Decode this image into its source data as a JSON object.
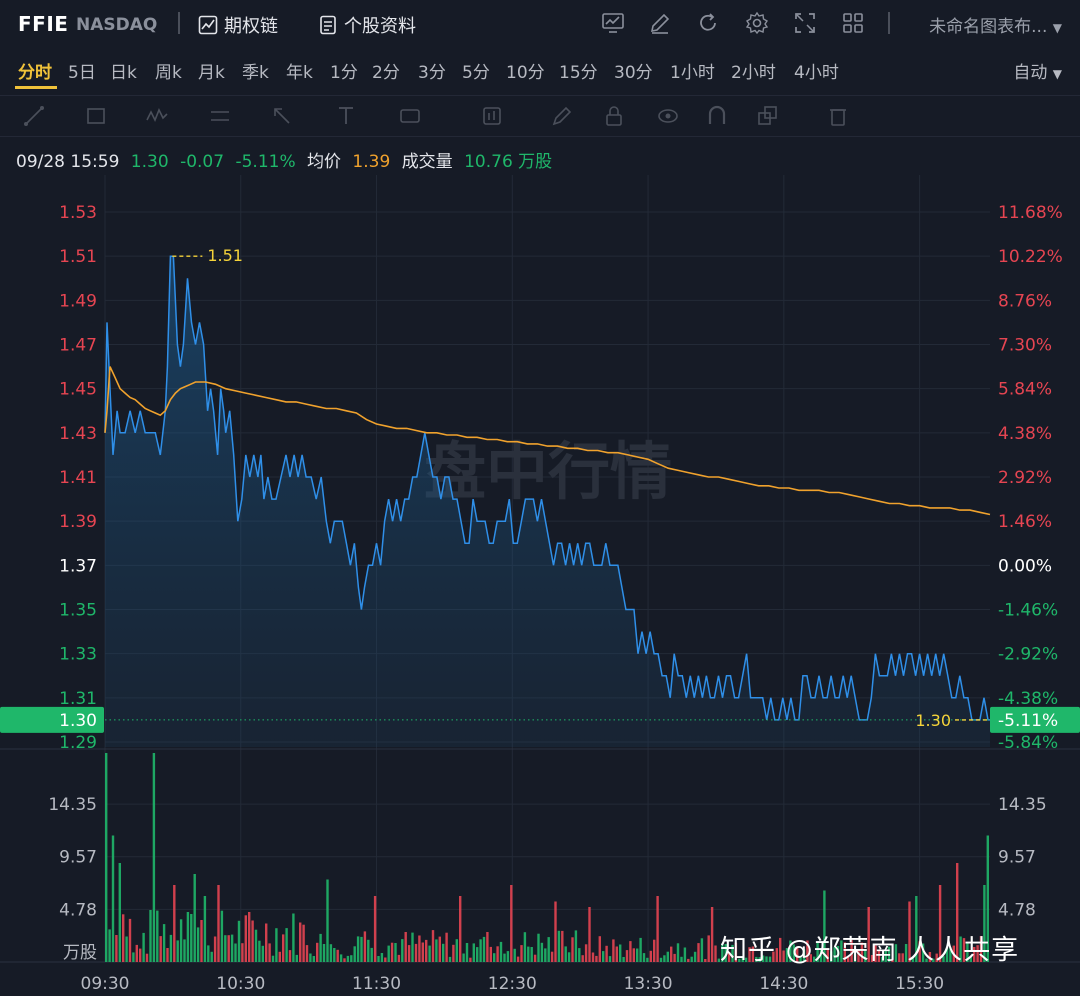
{
  "header": {
    "symbol": "FFIE",
    "exchange": "NASDAQ",
    "options_link": "期权链",
    "profile_link": "个股资料",
    "chart_title": "未命名图表布...",
    "icons": [
      "chart-compare-icon",
      "pencil-icon",
      "refresh-icon",
      "gear-icon",
      "fullscreen-icon",
      "grid-layout-icon"
    ]
  },
  "periods": [
    "分时",
    "5日",
    "日k",
    "周k",
    "月k",
    "季k",
    "年k",
    "1分",
    "2分",
    "3分",
    "5分",
    "10分",
    "15分",
    "30分",
    "1小时",
    "2小时",
    "4小时"
  ],
  "active_period": "分时",
  "scale_mode": "自动",
  "drawing_tools": [
    "trend-line-icon",
    "rectangle-icon",
    "wave-icon",
    "ruler-icon",
    "arrow-icon",
    "text-icon",
    "price-label-icon",
    "bar-pattern-icon",
    "brush-icon",
    "lock-icon",
    "eye-icon",
    "magnet-icon",
    "layers-icon",
    "trash-icon"
  ],
  "info": {
    "datetime": "09/28 15:59",
    "price": "1.30",
    "change": "-0.07",
    "change_pct": "-5.11%",
    "avg_label": "均价",
    "avg_value": "1.39",
    "volume_label": "成交量",
    "volume_value": "10.76 万股"
  },
  "colors": {
    "price_line": "#2f8fe8",
    "avg_line": "#f0a22d",
    "up": "#e64552",
    "down": "#1fb76a",
    "neutral": "#ffffff",
    "highlight": "#f5d33a"
  },
  "watermark_center": "盘中行情",
  "watermark_credit": "知乎 @郑荣南 人人共享",
  "chart_data": {
    "type": "line",
    "prev_close": 1.37,
    "ylim": [
      1.28,
      1.54
    ],
    "price_ticks": [
      "1.53",
      "1.51",
      "1.49",
      "1.47",
      "1.45",
      "1.43",
      "1.41",
      "1.39",
      "1.37",
      "1.35",
      "1.33",
      "1.31",
      "1.29"
    ],
    "pct_ticks": [
      "11.68%",
      "10.22%",
      "8.76%",
      "7.30%",
      "5.84%",
      "4.38%",
      "2.92%",
      "1.46%",
      "0.00%",
      "-1.46%",
      "-2.92%",
      "-4.38%",
      "-5.84%"
    ],
    "x_ticks": [
      "09:30",
      "10:30",
      "11:30",
      "12:30",
      "13:30",
      "14:30",
      "15:30"
    ],
    "high_marker": "1.51",
    "last_marker": "1.30",
    "last_price_tag": "1.30",
    "last_pct_tag": "-5.11%",
    "volume_ticks": [
      "14.35",
      "9.57",
      "4.78"
    ],
    "volume_unit": "万股",
    "volume_max": 19.0,
    "price": [
      [
        0,
        1.43
      ],
      [
        2,
        1.48
      ],
      [
        5,
        1.45
      ],
      [
        8,
        1.42
      ],
      [
        12,
        1.44
      ],
      [
        15,
        1.43
      ],
      [
        20,
        1.43
      ],
      [
        25,
        1.44
      ],
      [
        30,
        1.43
      ],
      [
        35,
        1.44
      ],
      [
        40,
        1.43
      ],
      [
        45,
        1.43
      ],
      [
        50,
        1.43
      ],
      [
        55,
        1.42
      ],
      [
        60,
        1.44
      ],
      [
        62,
        1.46
      ],
      [
        65,
        1.51
      ],
      [
        68,
        1.51
      ],
      [
        72,
        1.47
      ],
      [
        75,
        1.46
      ],
      [
        78,
        1.47
      ],
      [
        82,
        1.5
      ],
      [
        86,
        1.48
      ],
      [
        90,
        1.47
      ],
      [
        94,
        1.48
      ],
      [
        98,
        1.47
      ],
      [
        102,
        1.44
      ],
      [
        105,
        1.45
      ],
      [
        108,
        1.44
      ],
      [
        112,
        1.42
      ],
      [
        115,
        1.45
      ],
      [
        118,
        1.44
      ],
      [
        120,
        1.43
      ],
      [
        124,
        1.44
      ],
      [
        128,
        1.42
      ],
      [
        132,
        1.39
      ],
      [
        136,
        1.4
      ],
      [
        140,
        1.42
      ],
      [
        144,
        1.41
      ],
      [
        148,
        1.42
      ],
      [
        152,
        1.41
      ],
      [
        155,
        1.42
      ],
      [
        158,
        1.4
      ],
      [
        162,
        1.41
      ],
      [
        166,
        1.4
      ],
      [
        170,
        1.4
      ],
      [
        175,
        1.41
      ],
      [
        180,
        1.42
      ],
      [
        184,
        1.41
      ],
      [
        188,
        1.42
      ],
      [
        192,
        1.41
      ],
      [
        196,
        1.42
      ],
      [
        200,
        1.41
      ],
      [
        205,
        1.41
      ],
      [
        210,
        1.4
      ],
      [
        215,
        1.41
      ],
      [
        220,
        1.39
      ],
      [
        224,
        1.38
      ],
      [
        228,
        1.39
      ],
      [
        232,
        1.39
      ],
      [
        236,
        1.39
      ],
      [
        240,
        1.38
      ],
      [
        244,
        1.37
      ],
      [
        248,
        1.38
      ],
      [
        252,
        1.36
      ],
      [
        255,
        1.35
      ],
      [
        258,
        1.36
      ],
      [
        262,
        1.37
      ],
      [
        266,
        1.37
      ],
      [
        270,
        1.38
      ],
      [
        274,
        1.37
      ],
      [
        278,
        1.39
      ],
      [
        282,
        1.4
      ],
      [
        286,
        1.39
      ],
      [
        290,
        1.4
      ],
      [
        294,
        1.39
      ],
      [
        298,
        1.4
      ],
      [
        302,
        1.4
      ],
      [
        306,
        1.41
      ],
      [
        310,
        1.41
      ],
      [
        314,
        1.42
      ],
      [
        318,
        1.43
      ],
      [
        322,
        1.42
      ],
      [
        326,
        1.41
      ],
      [
        330,
        1.41
      ],
      [
        334,
        1.4
      ],
      [
        338,
        1.41
      ],
      [
        342,
        1.41
      ],
      [
        346,
        1.4
      ],
      [
        350,
        1.4
      ],
      [
        354,
        1.39
      ],
      [
        358,
        1.38
      ],
      [
        362,
        1.38
      ],
      [
        366,
        1.4
      ],
      [
        370,
        1.39
      ],
      [
        374,
        1.39
      ],
      [
        378,
        1.39
      ],
      [
        382,
        1.38
      ],
      [
        386,
        1.38
      ],
      [
        390,
        1.39
      ],
      [
        394,
        1.39
      ],
      [
        398,
        1.39
      ],
      [
        402,
        1.4
      ],
      [
        406,
        1.38
      ],
      [
        410,
        1.38
      ],
      [
        414,
        1.39
      ],
      [
        418,
        1.4
      ],
      [
        422,
        1.4
      ],
      [
        426,
        1.4
      ],
      [
        430,
        1.39
      ],
      [
        434,
        1.4
      ],
      [
        438,
        1.39
      ],
      [
        442,
        1.38
      ],
      [
        446,
        1.37
      ],
      [
        450,
        1.38
      ],
      [
        454,
        1.38
      ],
      [
        458,
        1.37
      ],
      [
        462,
        1.38
      ],
      [
        466,
        1.37
      ],
      [
        470,
        1.38
      ],
      [
        474,
        1.37
      ],
      [
        478,
        1.38
      ],
      [
        482,
        1.38
      ],
      [
        486,
        1.37
      ],
      [
        490,
        1.37
      ],
      [
        494,
        1.37
      ],
      [
        498,
        1.38
      ],
      [
        502,
        1.37
      ],
      [
        506,
        1.37
      ],
      [
        510,
        1.37
      ],
      [
        514,
        1.36
      ],
      [
        518,
        1.35
      ],
      [
        522,
        1.35
      ],
      [
        526,
        1.35
      ],
      [
        530,
        1.33
      ],
      [
        534,
        1.34
      ],
      [
        538,
        1.33
      ],
      [
        542,
        1.34
      ],
      [
        546,
        1.33
      ],
      [
        550,
        1.33
      ],
      [
        554,
        1.32
      ],
      [
        558,
        1.32
      ],
      [
        562,
        1.31
      ],
      [
        566,
        1.33
      ],
      [
        570,
        1.32
      ],
      [
        574,
        1.32
      ],
      [
        578,
        1.31
      ],
      [
        582,
        1.32
      ],
      [
        586,
        1.31
      ],
      [
        590,
        1.32
      ],
      [
        594,
        1.31
      ],
      [
        598,
        1.32
      ],
      [
        602,
        1.31
      ],
      [
        606,
        1.31
      ],
      [
        610,
        1.32
      ],
      [
        614,
        1.31
      ],
      [
        618,
        1.32
      ],
      [
        622,
        1.32
      ],
      [
        626,
        1.31
      ],
      [
        630,
        1.31
      ],
      [
        634,
        1.32
      ],
      [
        638,
        1.33
      ],
      [
        642,
        1.31
      ],
      [
        646,
        1.31
      ],
      [
        650,
        1.31
      ],
      [
        654,
        1.31
      ],
      [
        658,
        1.3
      ],
      [
        662,
        1.31
      ],
      [
        666,
        1.3
      ],
      [
        670,
        1.3
      ],
      [
        674,
        1.31
      ],
      [
        678,
        1.3
      ],
      [
        682,
        1.31
      ],
      [
        686,
        1.3
      ],
      [
        690,
        1.3
      ],
      [
        694,
        1.32
      ],
      [
        698,
        1.32
      ],
      [
        702,
        1.31
      ],
      [
        706,
        1.31
      ],
      [
        710,
        1.32
      ],
      [
        714,
        1.31
      ],
      [
        718,
        1.31
      ],
      [
        722,
        1.32
      ],
      [
        726,
        1.31
      ],
      [
        730,
        1.31
      ],
      [
        734,
        1.32
      ],
      [
        738,
        1.31
      ],
      [
        742,
        1.32
      ],
      [
        746,
        1.31
      ],
      [
        750,
        1.3
      ],
      [
        754,
        1.3
      ],
      [
        758,
        1.3
      ],
      [
        762,
        1.31
      ],
      [
        766,
        1.33
      ],
      [
        770,
        1.32
      ],
      [
        774,
        1.32
      ],
      [
        778,
        1.32
      ],
      [
        782,
        1.33
      ],
      [
        786,
        1.32
      ],
      [
        790,
        1.33
      ],
      [
        794,
        1.32
      ],
      [
        798,
        1.33
      ],
      [
        802,
        1.33
      ],
      [
        806,
        1.32
      ],
      [
        810,
        1.33
      ],
      [
        814,
        1.32
      ],
      [
        818,
        1.33
      ],
      [
        822,
        1.32
      ],
      [
        826,
        1.33
      ],
      [
        830,
        1.32
      ],
      [
        834,
        1.33
      ],
      [
        838,
        1.32
      ],
      [
        842,
        1.31
      ],
      [
        846,
        1.31
      ],
      [
        850,
        1.32
      ],
      [
        854,
        1.31
      ],
      [
        858,
        1.31
      ],
      [
        862,
        1.3
      ],
      [
        866,
        1.3
      ],
      [
        870,
        1.3
      ],
      [
        874,
        1.31
      ],
      [
        878,
        1.3
      ],
      [
        880,
        1.3
      ]
    ],
    "avg": [
      [
        0,
        1.43
      ],
      [
        2,
        1.44
      ],
      [
        5,
        1.46
      ],
      [
        10,
        1.455
      ],
      [
        15,
        1.45
      ],
      [
        20,
        1.448
      ],
      [
        25,
        1.446
      ],
      [
        30,
        1.445
      ],
      [
        35,
        1.443
      ],
      [
        40,
        1.441
      ],
      [
        45,
        1.44
      ],
      [
        50,
        1.439
      ],
      [
        55,
        1.438
      ],
      [
        60,
        1.44
      ],
      [
        65,
        1.445
      ],
      [
        70,
        1.448
      ],
      [
        75,
        1.45
      ],
      [
        80,
        1.451
      ],
      [
        85,
        1.452
      ],
      [
        90,
        1.453
      ],
      [
        95,
        1.453
      ],
      [
        100,
        1.453
      ],
      [
        110,
        1.452
      ],
      [
        120,
        1.45
      ],
      [
        130,
        1.449
      ],
      [
        140,
        1.448
      ],
      [
        150,
        1.447
      ],
      [
        160,
        1.446
      ],
      [
        170,
        1.445
      ],
      [
        180,
        1.444
      ],
      [
        190,
        1.444
      ],
      [
        200,
        1.443
      ],
      [
        210,
        1.442
      ],
      [
        220,
        1.441
      ],
      [
        230,
        1.441
      ],
      [
        240,
        1.44
      ],
      [
        250,
        1.439
      ],
      [
        260,
        1.436
      ],
      [
        270,
        1.434
      ],
      [
        280,
        1.433
      ],
      [
        290,
        1.432
      ],
      [
        300,
        1.432
      ],
      [
        310,
        1.431
      ],
      [
        320,
        1.43
      ],
      [
        330,
        1.43
      ],
      [
        340,
        1.429
      ],
      [
        350,
        1.429
      ],
      [
        360,
        1.428
      ],
      [
        370,
        1.428
      ],
      [
        380,
        1.427
      ],
      [
        390,
        1.427
      ],
      [
        400,
        1.426
      ],
      [
        410,
        1.426
      ],
      [
        420,
        1.425
      ],
      [
        430,
        1.425
      ],
      [
        440,
        1.424
      ],
      [
        450,
        1.424
      ],
      [
        460,
        1.423
      ],
      [
        470,
        1.423
      ],
      [
        480,
        1.422
      ],
      [
        490,
        1.422
      ],
      [
        500,
        1.421
      ],
      [
        510,
        1.421
      ],
      [
        520,
        1.42
      ],
      [
        530,
        1.419
      ],
      [
        540,
        1.418
      ],
      [
        550,
        1.416
      ],
      [
        560,
        1.414
      ],
      [
        570,
        1.413
      ],
      [
        580,
        1.412
      ],
      [
        590,
        1.411
      ],
      [
        600,
        1.41
      ],
      [
        610,
        1.41
      ],
      [
        620,
        1.409
      ],
      [
        630,
        1.408
      ],
      [
        640,
        1.407
      ],
      [
        650,
        1.406
      ],
      [
        660,
        1.406
      ],
      [
        670,
        1.405
      ],
      [
        680,
        1.405
      ],
      [
        690,
        1.404
      ],
      [
        700,
        1.404
      ],
      [
        710,
        1.404
      ],
      [
        720,
        1.403
      ],
      [
        730,
        1.403
      ],
      [
        740,
        1.402
      ],
      [
        750,
        1.401
      ],
      [
        760,
        1.4
      ],
      [
        770,
        1.399
      ],
      [
        780,
        1.398
      ],
      [
        790,
        1.398
      ],
      [
        800,
        1.397
      ],
      [
        810,
        1.397
      ],
      [
        820,
        1.396
      ],
      [
        830,
        1.396
      ],
      [
        840,
        1.396
      ],
      [
        850,
        1.395
      ],
      [
        860,
        1.395
      ],
      [
        870,
        1.394
      ],
      [
        880,
        1.393
      ]
    ]
  }
}
